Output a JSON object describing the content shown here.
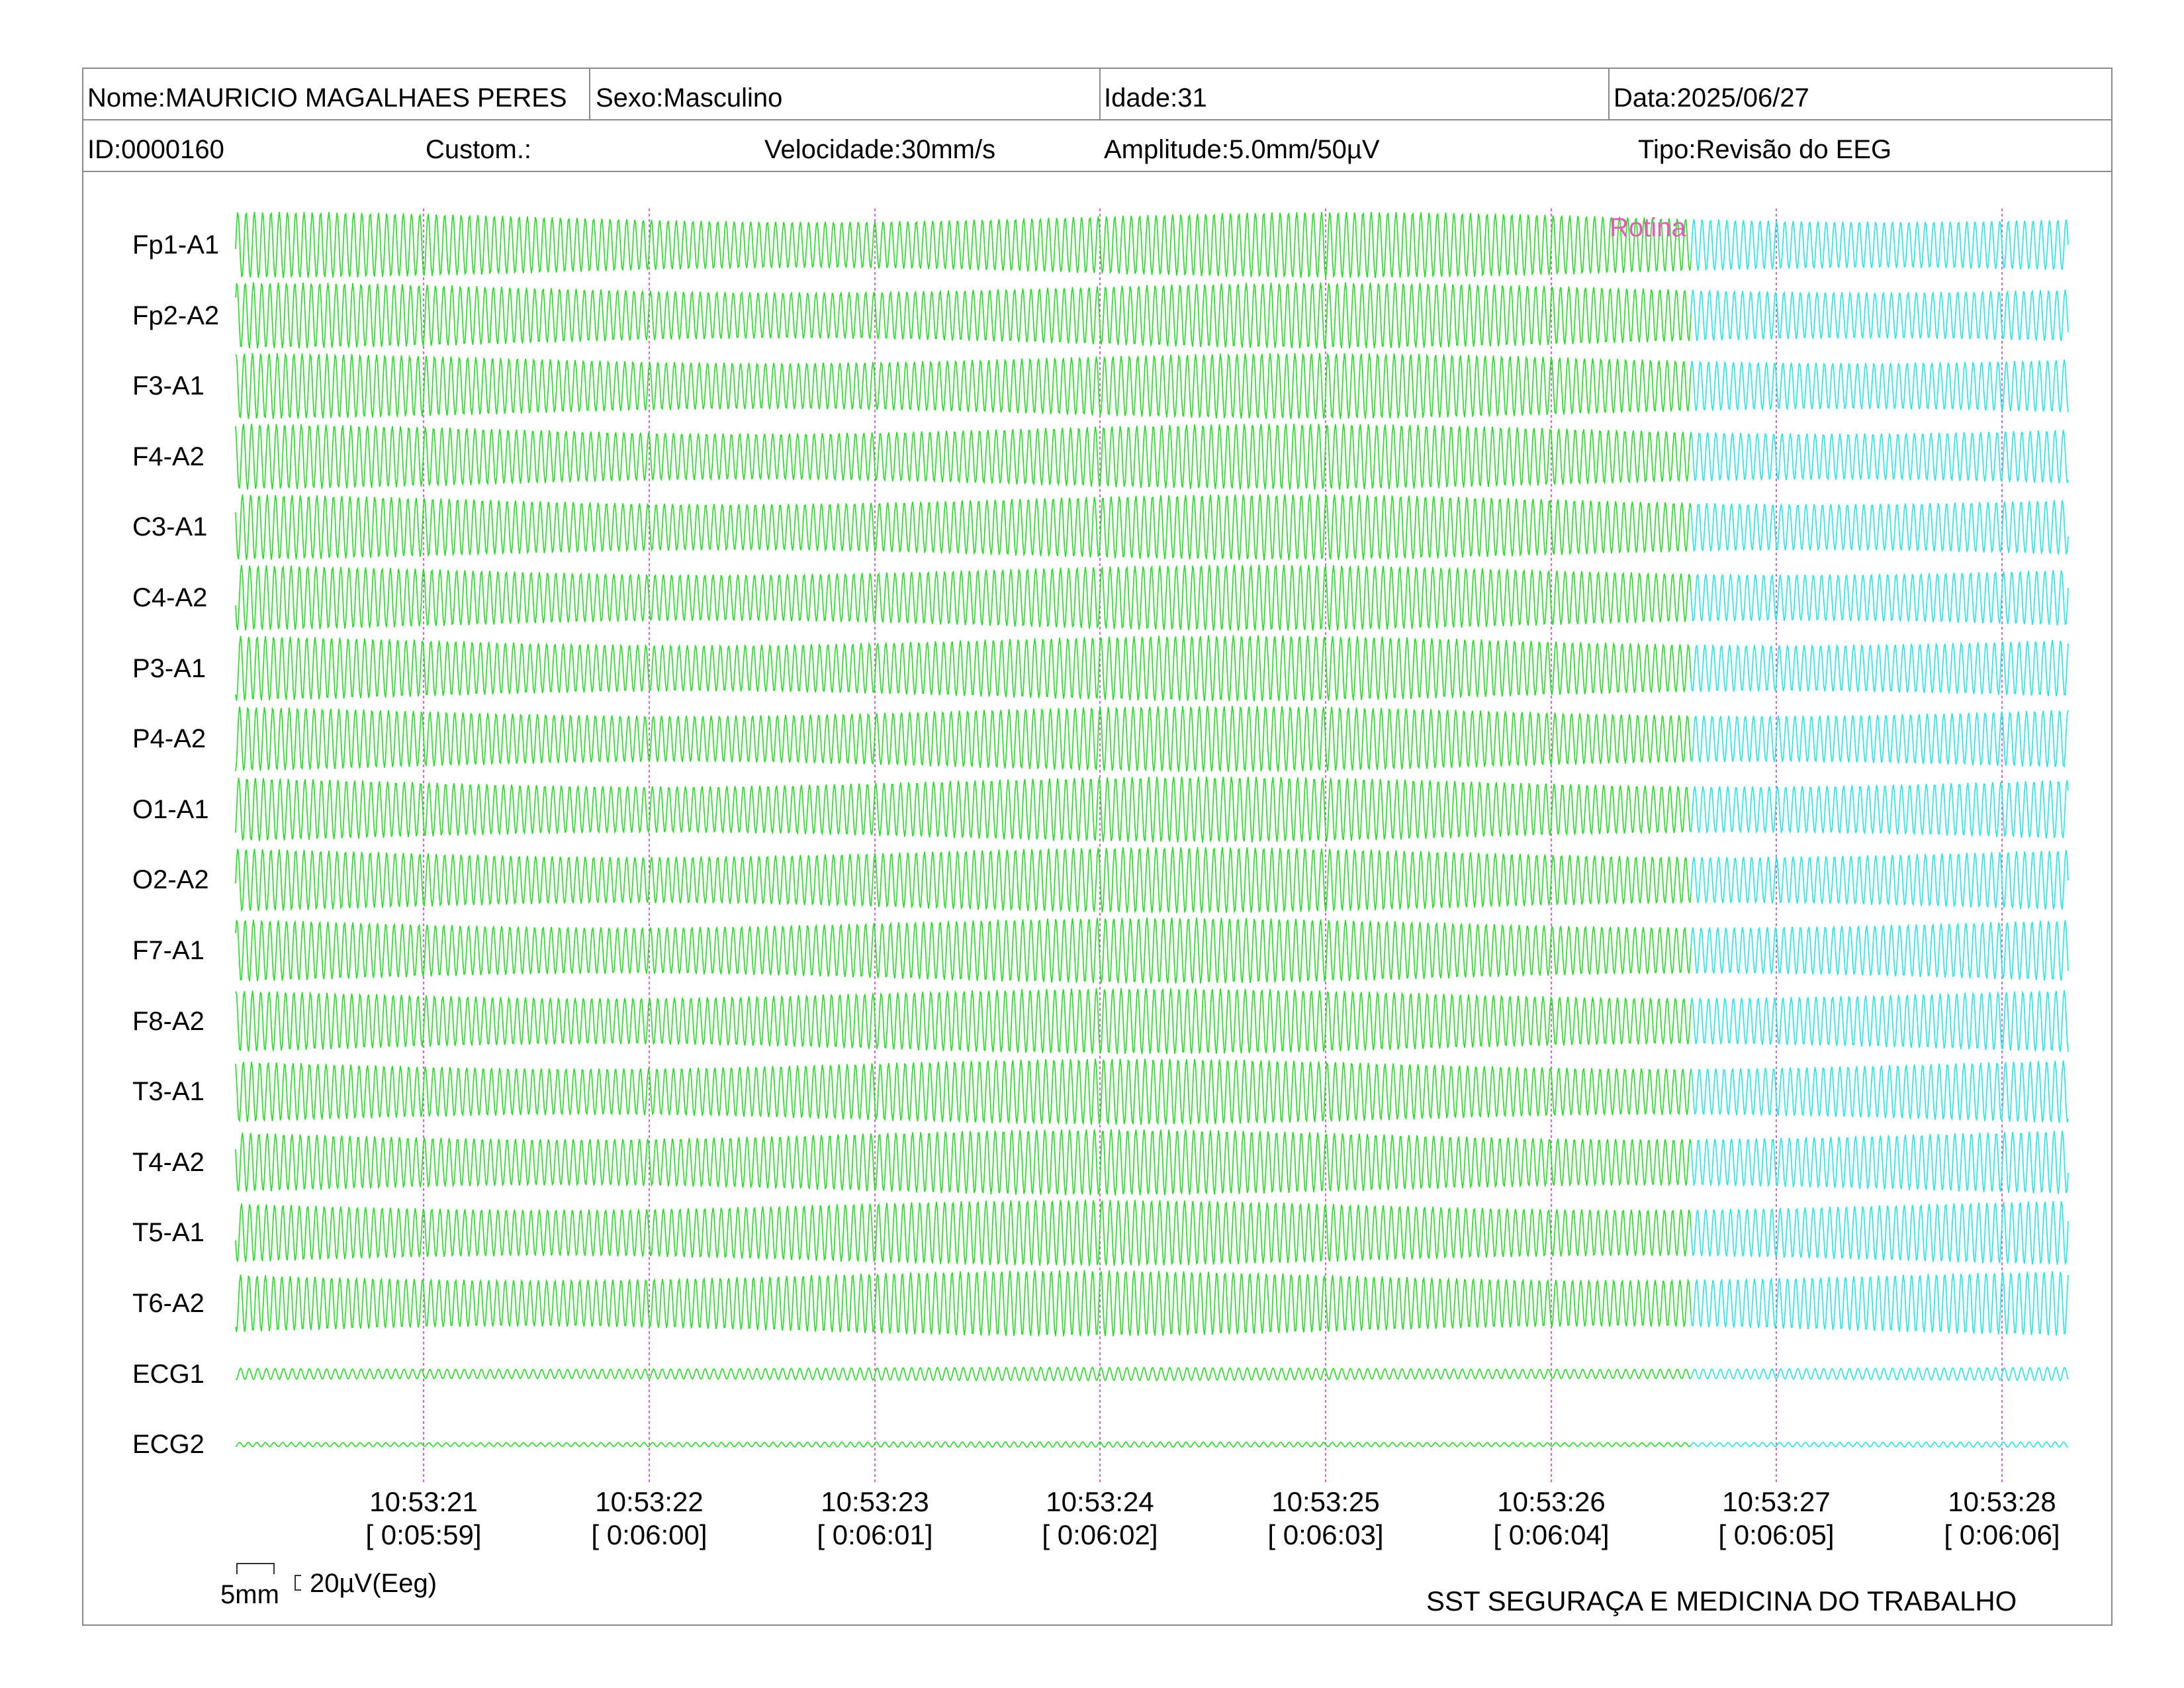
{
  "header": {
    "row1": {
      "name": "Nome:MAURICIO MAGALHAES PERES",
      "sex": "Sexo:Masculino",
      "age": "Idade:31",
      "date": "Data:2025/06/27"
    },
    "row2": {
      "id": "ID:0000160",
      "custom": "Custom.:",
      "speed": "Velocidade:30mm/s",
      "amplitude": "Amplitude:5.0mm/50µV",
      "type": "Tipo:Revisão do EEG"
    }
  },
  "channels": [
    "Fp1-A1",
    "Fp2-A2",
    "F3-A1",
    "F4-A2",
    "C3-A1",
    "C4-A2",
    "P3-A1",
    "P4-A2",
    "O1-A1",
    "O2-A2",
    "F7-A1",
    "F8-A2",
    "T3-A1",
    "T4-A2",
    "T5-A1",
    "T6-A2",
    "ECG1",
    "ECG2"
  ],
  "annotation": "Rotina",
  "time_markers": [
    {
      "clock": "10:53:21",
      "elapsed": "[ 0:05:59]"
    },
    {
      "clock": "10:53:22",
      "elapsed": "[ 0:06:00]"
    },
    {
      "clock": "10:53:23",
      "elapsed": "[ 0:06:01]"
    },
    {
      "clock": "10:53:24",
      "elapsed": "[ 0:06:02]"
    },
    {
      "clock": "10:53:25",
      "elapsed": "[ 0:06:03]"
    },
    {
      "clock": "10:53:26",
      "elapsed": "[ 0:06:04]"
    },
    {
      "clock": "10:53:27",
      "elapsed": "[ 0:06:05]"
    },
    {
      "clock": "10:53:28",
      "elapsed": "[ 0:06:06]"
    }
  ],
  "scale": {
    "time": "5mm",
    "amplitude": "20µV(Eeg)"
  },
  "footer": "SST SEGURAÇA E MEDICINA DO TRABALHO",
  "colors": {
    "trace_main": "#22dd22",
    "trace_recent": "#22e5e5",
    "marker": "#cc33cc",
    "annotation": "#e25bb6"
  }
}
